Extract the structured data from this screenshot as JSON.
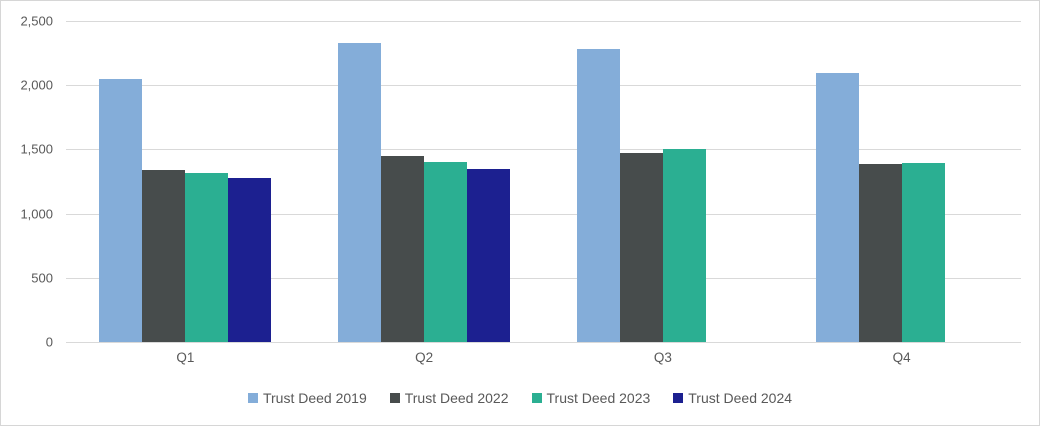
{
  "chart_data": {
    "type": "bar",
    "title": "",
    "xlabel": "",
    "ylabel": "",
    "categories": [
      "Q1",
      "Q2",
      "Q3",
      "Q4"
    ],
    "series": [
      {
        "name": "Trust Deed 2019",
        "color": "#84ADD9",
        "values": [
          2045,
          2330,
          2280,
          2095
        ]
      },
      {
        "name": "Trust Deed 2022",
        "color": "#474C4C",
        "values": [
          1340,
          1450,
          1475,
          1390
        ]
      },
      {
        "name": "Trust Deed 2023",
        "color": "#2BAF92",
        "values": [
          1315,
          1405,
          1500,
          1395
        ]
      },
      {
        "name": "Trust Deed 2024",
        "color": "#1C2090",
        "values": [
          1280,
          1345,
          null,
          null
        ]
      }
    ],
    "ylim": [
      0,
      2500
    ],
    "ytick_step": 500,
    "ytick_labels": [
      "0",
      "500",
      "1,000",
      "1,500",
      "2,000",
      "2,500"
    ],
    "grid": true,
    "legend_position": "bottom"
  },
  "style": {
    "axis_text_color": "#595959",
    "gridline_color": "#d9d9d9",
    "border_color": "#d6d6d6",
    "background": "#ffffff"
  }
}
